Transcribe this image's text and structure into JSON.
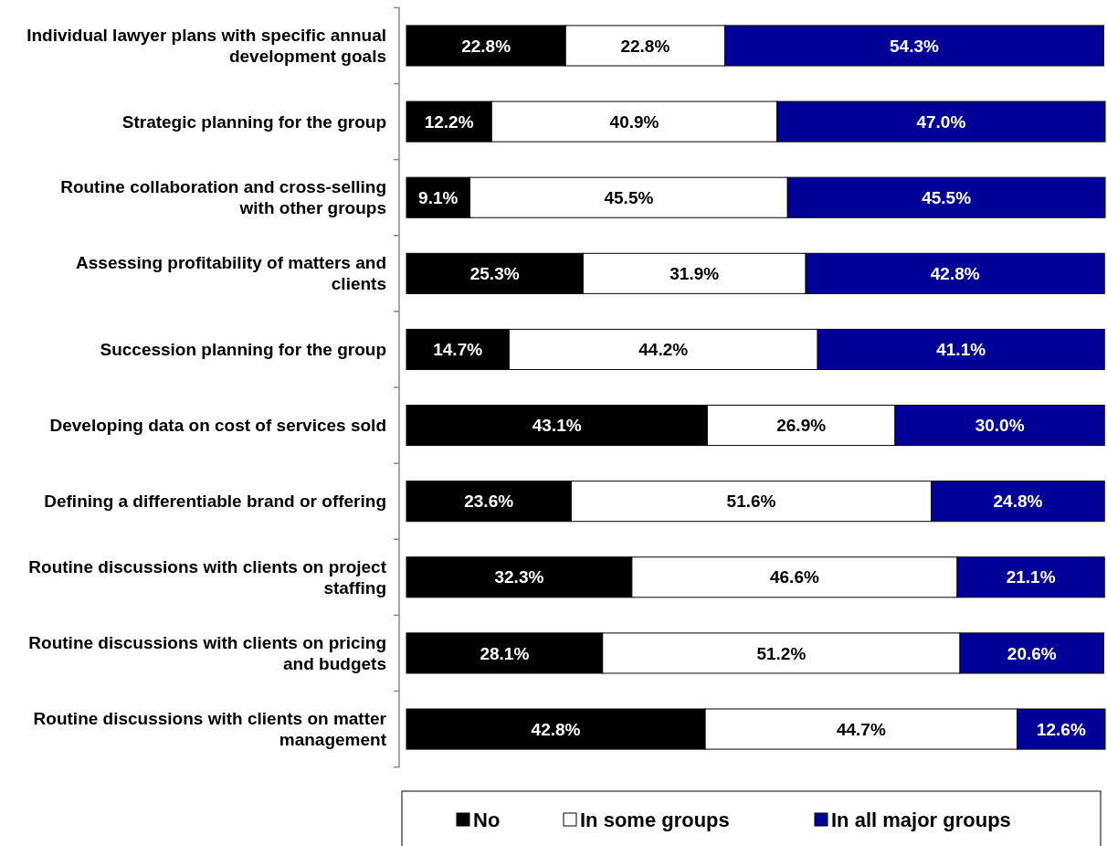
{
  "chart_data": {
    "type": "bar",
    "orientation": "horizontal",
    "stacked": true,
    "legend": "bottom",
    "tick_labels": "y",
    "categories": [
      "Individual lawyer plans with specific annual development goals",
      "Strategic planning for the group",
      "Routine collaboration and cross-selling with other groups",
      "Assessing profitability of matters and clients",
      "Succession planning for the group",
      "Developing data on cost of services sold",
      "Defining a differentiable brand or offering",
      "Routine discussions with clients on project staffing",
      "Routine discussions with clients on pricing and budgets",
      "Routine discussions with clients on matter management"
    ],
    "series": [
      {
        "name": "No",
        "color": "#000000",
        "values": [
          22.8,
          12.2,
          9.1,
          25.3,
          14.7,
          43.1,
          23.6,
          32.3,
          28.1,
          42.8
        ],
        "value_labels": [
          "22.8%",
          "12.2%",
          "9.1%",
          "25.3%",
          "14.7%",
          "43.1%",
          "23.6%",
          "32.3%",
          "28.1%",
          "42.8%"
        ]
      },
      {
        "name": "In some groups",
        "color": "#ffffff",
        "values": [
          22.8,
          40.9,
          45.5,
          31.9,
          44.2,
          26.9,
          51.6,
          46.6,
          51.2,
          44.7
        ],
        "value_labels": [
          "22.8%",
          "40.9%",
          "45.5%",
          "31.9%",
          "44.2%",
          "26.9%",
          "51.6%",
          "46.6%",
          "51.2%",
          "44.7%"
        ]
      },
      {
        "name": "In all major groups",
        "color": "#000099",
        "values": [
          54.3,
          47.0,
          45.5,
          42.8,
          41.1,
          30.0,
          24.8,
          21.1,
          20.6,
          12.6
        ],
        "value_labels": [
          "54.3%",
          "47.0%",
          "45.5%",
          "42.8%",
          "41.1%",
          "30.0%",
          "24.8%",
          "21.1%",
          "20.6%",
          "12.6%"
        ]
      }
    ]
  }
}
